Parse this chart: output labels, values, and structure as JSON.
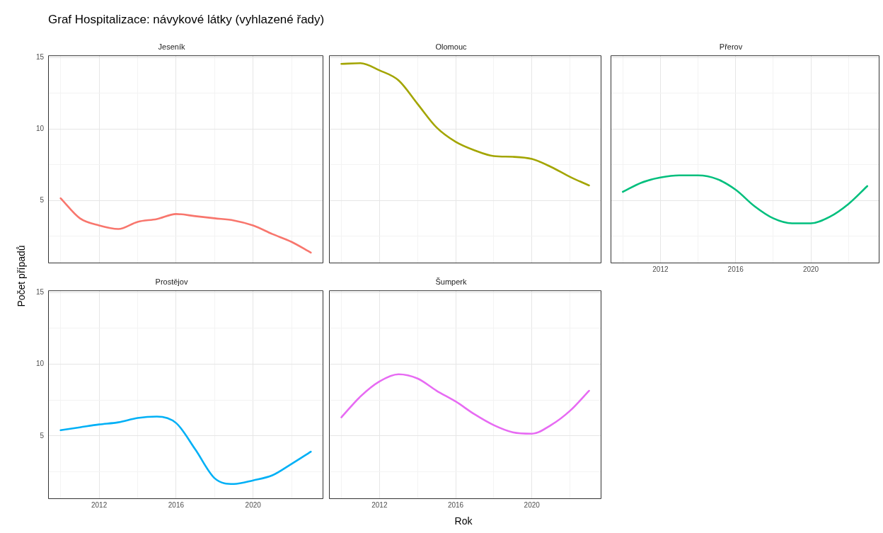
{
  "chart_data": [
    {
      "type": "line",
      "title": "Jeseník",
      "annotations": [
        "Graf Hospitalizace: návykové látky (vyhlazené řady)"
      ],
      "ylabel": "Počet případů",
      "x": [
        2010,
        2011,
        2012,
        2013,
        2014,
        2015,
        2016,
        2017,
        2018,
        2019,
        2020,
        2021,
        2022,
        2023
      ],
      "xlim": [
        2009.35,
        2023.65
      ],
      "ylim": [
        0.6,
        15.15
      ],
      "xticks": [
        {
          "value": 2010,
          "label": null
        },
        2012,
        {
          "value": 2014,
          "label": null
        },
        2016,
        {
          "value": 2018,
          "label": null
        },
        2020,
        {
          "value": 2022,
          "label": null
        }
      ],
      "yticks": [
        {
          "value": 2.5,
          "label": null
        },
        5,
        {
          "value": 7.5,
          "label": null
        },
        10,
        {
          "value": 12.5,
          "label": null
        },
        15
      ],
      "grid": true,
      "tick_labels": "y",
      "series": [
        {
          "color": "#f8766d",
          "values": [
            5.15,
            3.75,
            3.25,
            3.0,
            3.5,
            3.7,
            4.05,
            3.9,
            3.75,
            3.6,
            3.25,
            2.65,
            2.1,
            1.35
          ]
        }
      ]
    },
    {
      "type": "line",
      "title": "Olomouc",
      "x": [
        2010,
        2011,
        2012,
        2013,
        2014,
        2015,
        2016,
        2017,
        2018,
        2019,
        2020,
        2021,
        2022,
        2023
      ],
      "xlim": [
        2009.35,
        2023.65
      ],
      "ylim": [
        0.6,
        15.15
      ],
      "xticks": [
        {
          "value": 2010,
          "label": null
        },
        2012,
        {
          "value": 2014,
          "label": null
        },
        2016,
        {
          "value": 2018,
          "label": null
        },
        2020,
        {
          "value": 2022,
          "label": null
        }
      ],
      "yticks": [
        {
          "value": 2.5,
          "label": null
        },
        5,
        {
          "value": 7.5,
          "label": null
        },
        10,
        {
          "value": 12.5,
          "label": null
        },
        15
      ],
      "grid": true,
      "tick_labels": false,
      "series": [
        {
          "color": "#a3a500",
          "values": [
            14.55,
            14.6,
            14.1,
            13.4,
            11.75,
            10.1,
            9.1,
            8.5,
            8.1,
            8.05,
            7.9,
            7.35,
            6.65,
            6.05
          ]
        }
      ]
    },
    {
      "type": "line",
      "title": "Přerov",
      "x": [
        2010,
        2011,
        2012,
        2013,
        2014,
        2015,
        2016,
        2017,
        2018,
        2019,
        2020,
        2021,
        2022,
        2023
      ],
      "xlim": [
        2009.35,
        2023.65
      ],
      "ylim": [
        0.6,
        15.15
      ],
      "xticks": [
        {
          "value": 2010,
          "label": null
        },
        2012,
        {
          "value": 2014,
          "label": null
        },
        2016,
        {
          "value": 2018,
          "label": null
        },
        2020,
        {
          "value": 2022,
          "label": null
        }
      ],
      "yticks": [
        {
          "value": 2.5,
          "label": null
        },
        5,
        {
          "value": 7.5,
          "label": null
        },
        10,
        {
          "value": 12.5,
          "label": null
        },
        15
      ],
      "grid": true,
      "tick_labels": "x",
      "series": [
        {
          "color": "#00bf7d",
          "values": [
            5.6,
            6.25,
            6.6,
            6.75,
            6.75,
            6.5,
            5.75,
            4.6,
            3.75,
            3.4,
            3.4,
            3.85,
            4.75,
            6.0
          ]
        }
      ]
    },
    {
      "type": "line",
      "title": "Prostějov",
      "x": [
        2010,
        2011,
        2012,
        2013,
        2014,
        2015,
        2016,
        2017,
        2018,
        2019,
        2020,
        2021,
        2022,
        2023
      ],
      "xlim": [
        2009.35,
        2023.65
      ],
      "ylim": [
        0.6,
        15.15
      ],
      "xticks": [
        {
          "value": 2010,
          "label": null
        },
        2012,
        {
          "value": 2014,
          "label": null
        },
        2016,
        {
          "value": 2018,
          "label": null
        },
        2020,
        {
          "value": 2022,
          "label": null
        }
      ],
      "yticks": [
        {
          "value": 2.5,
          "label": null
        },
        5,
        {
          "value": 7.5,
          "label": null
        },
        10,
        {
          "value": 12.5,
          "label": null
        },
        15
      ],
      "grid": true,
      "series": [
        {
          "color": "#00b0f6",
          "values": [
            5.4,
            5.6,
            5.8,
            5.95,
            6.25,
            6.35,
            5.9,
            4.05,
            2.05,
            1.65,
            1.9,
            2.25,
            3.05,
            3.9
          ]
        }
      ]
    },
    {
      "type": "line",
      "title": "Šumperk",
      "xlabel": "Rok",
      "x": [
        2010,
        2011,
        2012,
        2013,
        2014,
        2015,
        2016,
        2017,
        2018,
        2019,
        2020,
        2021,
        2022,
        2023
      ],
      "xlim": [
        2009.35,
        2023.65
      ],
      "ylim": [
        0.6,
        15.15
      ],
      "xticks": [
        {
          "value": 2010,
          "label": null
        },
        2012,
        {
          "value": 2014,
          "label": null
        },
        2016,
        {
          "value": 2018,
          "label": null
        },
        2020,
        {
          "value": 2022,
          "label": null
        }
      ],
      "yticks": [
        {
          "value": 2.5,
          "label": null
        },
        5,
        {
          "value": 7.5,
          "label": null
        },
        10,
        {
          "value": 12.5,
          "label": null
        },
        15
      ],
      "grid": true,
      "tick_labels": "x",
      "series": [
        {
          "color": "#e76bf3",
          "values": [
            6.3,
            7.75,
            8.8,
            9.3,
            9.0,
            8.15,
            7.4,
            6.5,
            5.75,
            5.25,
            5.15,
            5.75,
            6.75,
            8.15
          ]
        }
      ]
    }
  ]
}
